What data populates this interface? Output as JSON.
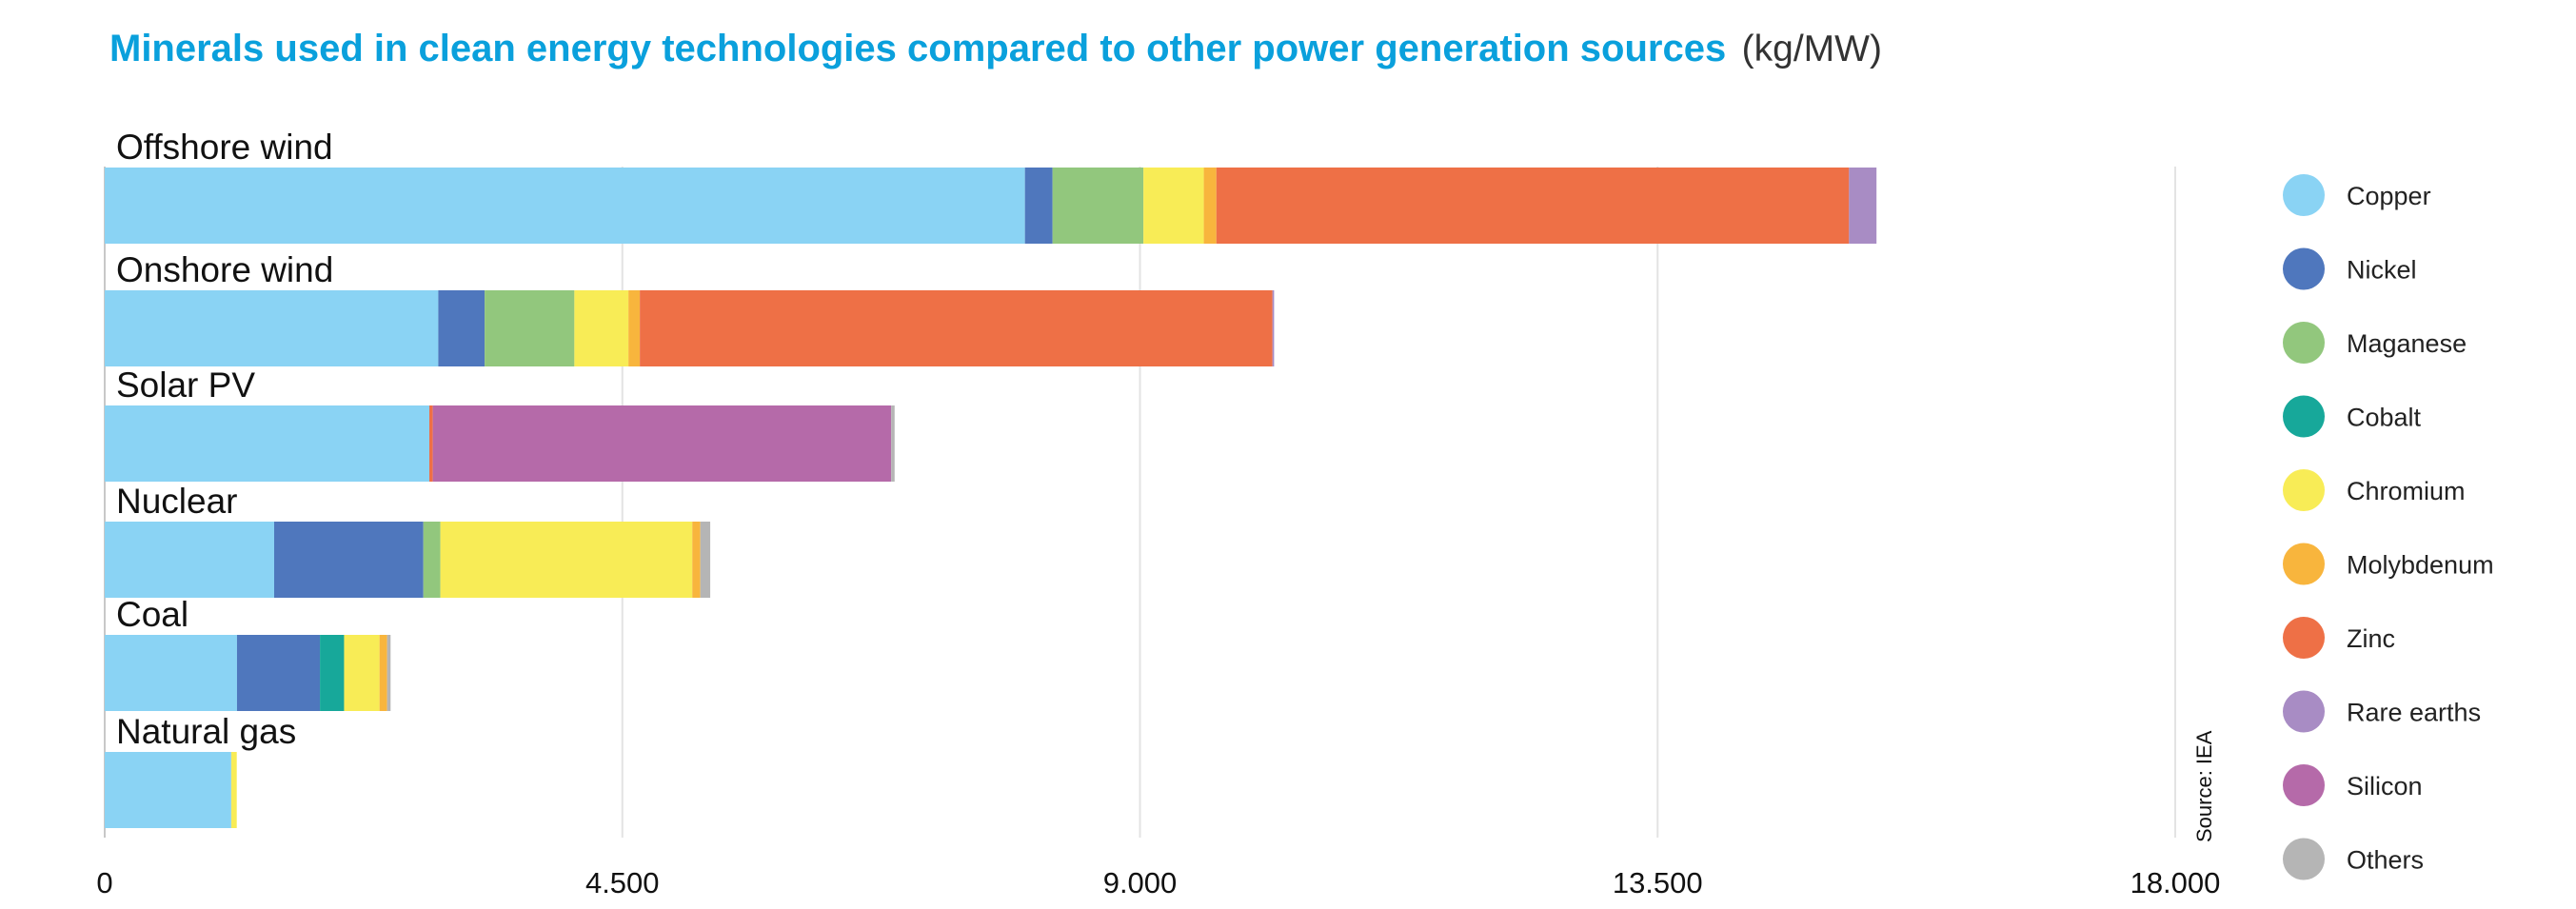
{
  "chart_data": {
    "type": "bar",
    "orientation": "horizontal",
    "stacked": true,
    "title": "Minerals used in clean energy technologies compared to other power generation sources",
    "title_unit": "(kg/MW)",
    "categories": [
      "Offshore wind",
      "Onshore wind",
      "Solar PV",
      "Nuclear",
      "Coal",
      "Natural gas"
    ],
    "xlim": [
      0,
      18000
    ],
    "xticks": [
      0,
      4500,
      9000,
      13500,
      18000
    ],
    "xtick_labels": [
      "0",
      "4.500",
      "9.000",
      "13.500",
      "18.000"
    ],
    "grid": "vertical",
    "legend_position": "right",
    "source": "Source: IEA",
    "series": [
      {
        "name": "Copper",
        "color": "#8ad3f4",
        "values": [
          8000,
          2900,
          2822,
          1473,
          1150,
          1100
        ]
      },
      {
        "name": "Nickel",
        "color": "#4f77bd",
        "values": [
          240,
          403,
          0,
          1297,
          721,
          0
        ]
      },
      {
        "name": "Maganese",
        "color": "#92c77d",
        "values": [
          790,
          780,
          0,
          148,
          0,
          0
        ]
      },
      {
        "name": "Cobalt",
        "color": "#17a89a",
        "values": [
          0,
          0,
          0,
          0,
          210,
          0
        ]
      },
      {
        "name": "Chromium",
        "color": "#f8ec56",
        "values": [
          525,
          470,
          0,
          2190,
          308,
          48
        ]
      },
      {
        "name": "Molybdenum",
        "color": "#f8b53d",
        "values": [
          109,
          99,
          0,
          70,
          66,
          0
        ]
      },
      {
        "name": "Zinc",
        "color": "#ee7046",
        "values": [
          5500,
          5500,
          30,
          0,
          0,
          0
        ]
      },
      {
        "name": "Rare earths",
        "color": "#a88cc4",
        "values": [
          239,
          14,
          0,
          0,
          0,
          0
        ]
      },
      {
        "name": "Silicon",
        "color": "#b56aa9",
        "values": [
          0,
          0,
          3985,
          0,
          0,
          0
        ]
      },
      {
        "name": "Others",
        "color": "#b5b5b5",
        "values": [
          0,
          0,
          30,
          86,
          30,
          0
        ]
      }
    ]
  }
}
